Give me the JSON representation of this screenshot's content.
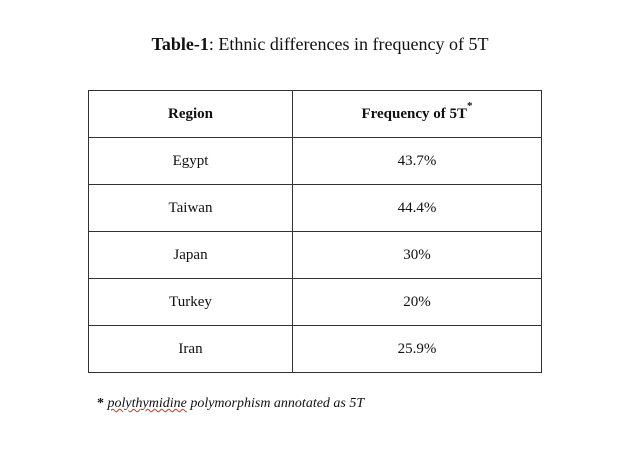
{
  "title": {
    "label": "Table-1",
    "text": ": Ethnic differences in frequency of 5T"
  },
  "table": {
    "header": [
      "Region",
      "Frequency of 5T"
    ],
    "header_note": "*",
    "rows": [
      [
        "Egypt",
        "43.7%"
      ],
      [
        "Taiwan",
        "44.4%"
      ],
      [
        "Japan",
        "30%"
      ],
      [
        "Turkey",
        "20%"
      ],
      [
        "Iran",
        "25.9%"
      ]
    ]
  },
  "footnote": {
    "marker": "*",
    "word": "polythymidine",
    "text": "polymorphism annotated as 5T"
  }
}
